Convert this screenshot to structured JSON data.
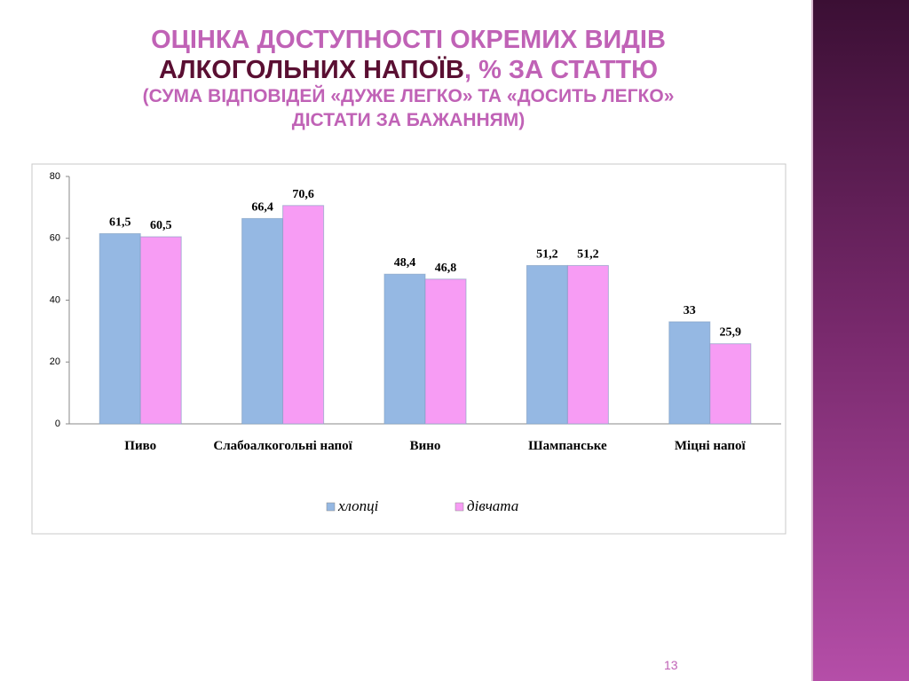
{
  "slide": {
    "title": [
      "ОЦІНКА ДОСТУПНОСТІ ОКРЕМИХ ВИДІВ",
      "АЛКОГОЛЬНИХ НАПОЇВ",
      ", % ЗА СТАТТЮ",
      "(СУМА ВІДПОВІДЕЙ «ДУЖЕ ЛЕГКО» ТА «ДОСИТЬ ЛЕГКО»",
      "ДІСТАТИ ЗА БАЖАННЯМ)"
    ],
    "slide_number": "13"
  },
  "chart_data": {
    "type": "bar",
    "categories": [
      "Пиво",
      "Слабоалкогольні напої",
      "Вино",
      "Шампанське",
      "Міцні напої"
    ],
    "series": [
      {
        "name": "хлопці",
        "color": "#95b8e3",
        "values": [
          61.5,
          66.4,
          48.4,
          51.2,
          33
        ],
        "value_labels": [
          "61,5",
          "66,4",
          "48,4",
          "51,2",
          "33"
        ]
      },
      {
        "name": "дівчата",
        "color": "#f79cf4",
        "values": [
          60.5,
          70.6,
          46.8,
          51.2,
          25.9
        ],
        "value_labels": [
          "60,5",
          "70,6",
          "46,8",
          "51,2",
          "25,9"
        ]
      }
    ],
    "ylim": [
      0,
      80
    ],
    "yticks": [
      0,
      20,
      40,
      60,
      80
    ],
    "legend": "bottom"
  }
}
